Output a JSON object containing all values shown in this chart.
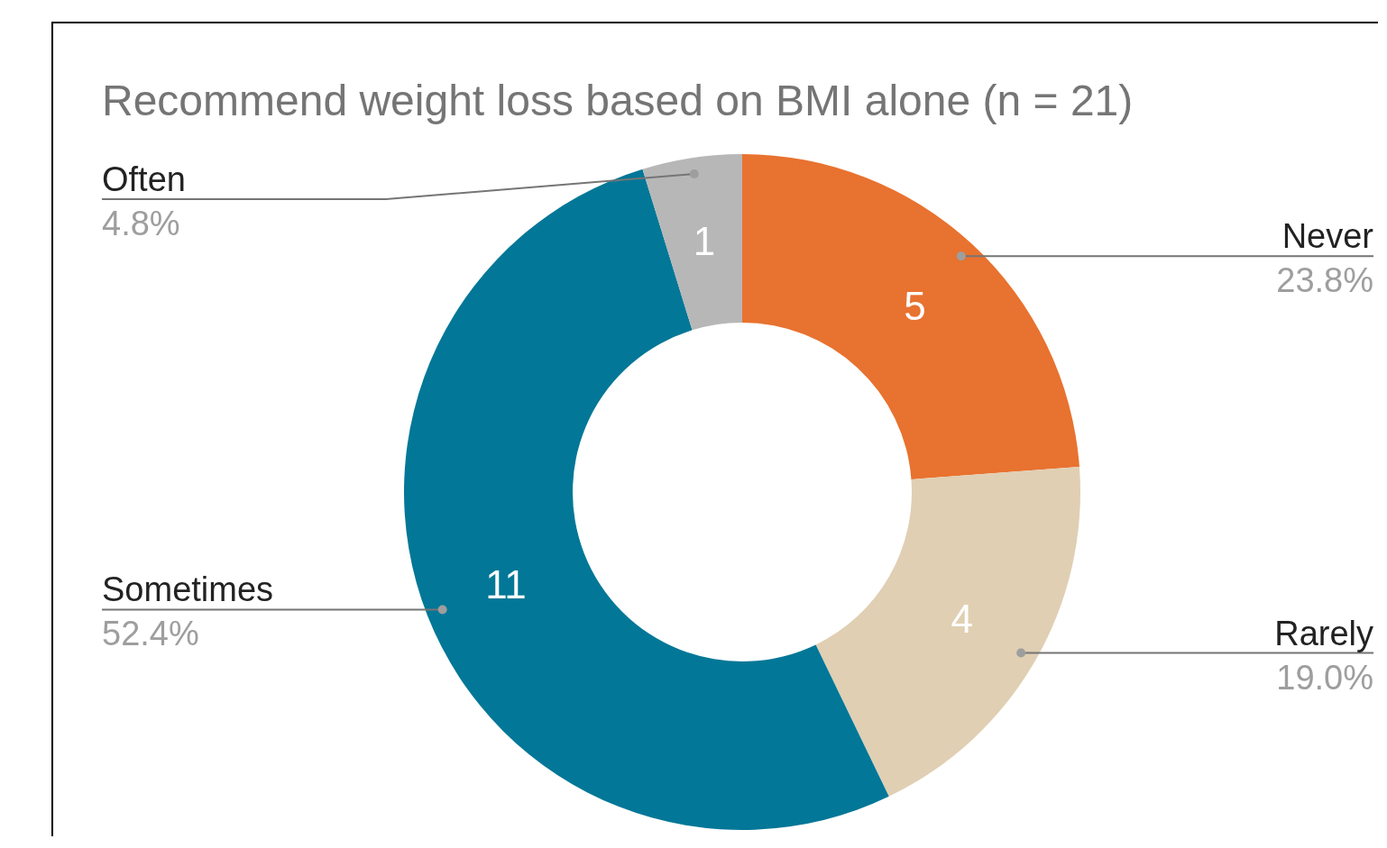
{
  "chart_data": {
    "type": "donut",
    "title": "Recommend weight loss based on BMI alone (n = 21)",
    "categories": [
      "Never",
      "Rarely",
      "Sometimes",
      "Often"
    ],
    "values": [
      5,
      4,
      11,
      1
    ],
    "colors": [
      "#e8722f",
      "#e0cfb3",
      "#027797",
      "#b7b7b7"
    ],
    "data_labels": true,
    "annotations": [
      "23.8%",
      "19.0%",
      "52.4%",
      "4.8%"
    ]
  }
}
